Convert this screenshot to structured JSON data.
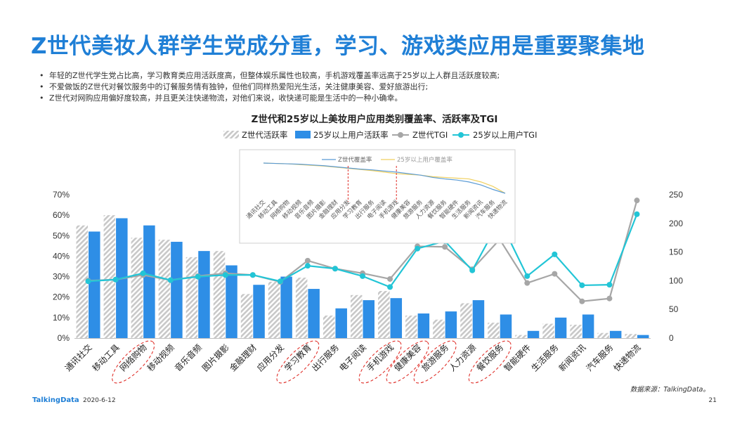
{
  "page": {
    "title": "Z世代美妆人群学生党成分重，学习、游戏类应用是重要聚集地",
    "bullets": [
      "年轻的Z世代学生党占比高，学习教育类应用活跃度高，但整体娱乐属性也较高，手机游戏覆盖率远高于25岁以上人群且活跃度较高;",
      "不爱做饭的Z世代对餐饮服务中的订餐服务情有独钟，但他们同样热爱阳光生活，关注健康美容、爱好旅游出行;",
      "Z世代对网购应用偏好度较高，并且更关注快递物流，对他们来说，收快递可能是生活中的一种小确幸。"
    ],
    "source": "数据来源：TalkingData。",
    "logo": "TalkingData",
    "date": "2020-6-12",
    "page_number": "21"
  },
  "colors": {
    "z_bar": "#c8c8c8",
    "adult_bar": "#2e8ee6",
    "z_tgi": "#a6a6a6",
    "adult_tgi": "#22c5d6",
    "highlight": "#e0302a",
    "inset_z": "#5b9bd5",
    "inset_adult": "#f0d060"
  },
  "chart_data": [
    {
      "type": "bar",
      "title": "Z世代和25岁以上美妆用户应用类别覆盖率、活跃率及TGI",
      "categories": [
        "通讯社交",
        "移动工具",
        "网络购物",
        "移动视频",
        "音乐音频",
        "图片摄影",
        "金融理财",
        "应用分发",
        "学习教育",
        "出行服务",
        "电子阅读",
        "手机游戏",
        "健康美容",
        "旅游服务",
        "人力资源",
        "餐饮服务",
        "智能硬件",
        "生活服务",
        "新闻资讯",
        "汽车服务",
        "快递物流"
      ],
      "highlighted": [
        "网络购物",
        "学习教育",
        "手机游戏",
        "健康美容",
        "旅游服务",
        "餐饮服务"
      ],
      "y_left": {
        "ticks": [
          "0%",
          "10%",
          "20%",
          "30%",
          "40%",
          "50%",
          "60%",
          "70%"
        ],
        "ylim": [
          0,
          70
        ]
      },
      "y_right": {
        "ticks": [
          "0",
          "50",
          "100",
          "150",
          "200",
          "250"
        ],
        "ylim": [
          0,
          250
        ]
      },
      "series": [
        {
          "name": "Z世代活跃率",
          "type": "bar",
          "axis": "left",
          "values": [
            55,
            60,
            49,
            48,
            39.5,
            42.5,
            21.5,
            27.5,
            29.5,
            11,
            21,
            23,
            11,
            9,
            17,
            7.5,
            1.5,
            7,
            6.5,
            2.5,
            2
          ]
        },
        {
          "name": "25岁以上用户活跃率",
          "type": "bar",
          "axis": "left",
          "values": [
            52,
            58.5,
            55,
            47,
            42.5,
            35.5,
            26,
            30,
            24,
            14.5,
            18.5,
            19.5,
            12,
            13,
            18.5,
            11.5,
            3.5,
            10,
            11.5,
            3.5,
            1.5
          ]
        },
        {
          "name": "Z世代TGI",
          "type": "line",
          "axis": "right",
          "values": [
            100,
            102,
            110,
            101,
            108,
            113,
            110,
            98,
            135,
            121,
            113,
            103,
            160,
            159,
            120,
            172,
            96,
            112,
            64,
            69,
            240
          ]
        },
        {
          "name": "25岁以上用户TGI",
          "type": "line",
          "axis": "right",
          "values": [
            99,
            102,
            113,
            101,
            107,
            110,
            110,
            99,
            126,
            121,
            108,
            89,
            156,
            169,
            118,
            206,
            108,
            146,
            92,
            93,
            216
          ]
        }
      ],
      "legend": "top-center"
    },
    {
      "type": "line",
      "categories": [
        "通讯社交",
        "移动工具",
        "网络购物",
        "移动视频",
        "音乐音频",
        "图片摄影",
        "金融理财",
        "应用分发",
        "学习教育",
        "出行服务",
        "电子阅读",
        "手机游戏",
        "健康美容",
        "旅游服务",
        "人力资源",
        "餐饮服务",
        "智能硬件",
        "生活服务",
        "新闻资讯",
        "汽车服务",
        "快递物流"
      ],
      "series": [
        {
          "name": "Z世代覆盖率",
          "values": [
            100,
            99,
            98,
            97,
            95,
            93,
            90,
            87,
            84,
            82,
            79,
            76,
            72,
            68,
            62,
            58,
            55,
            50,
            42,
            30,
            20
          ]
        },
        {
          "name": "25岁以上用户覆盖率",
          "values": [
            100,
            99,
            98,
            96,
            94,
            92,
            89,
            86,
            83,
            80,
            76,
            72,
            70,
            68,
            64,
            62,
            60,
            58,
            50,
            38,
            20
          ]
        }
      ],
      "markers": [
        "应用分发",
        "手机游戏"
      ],
      "legend": "top-center"
    }
  ]
}
